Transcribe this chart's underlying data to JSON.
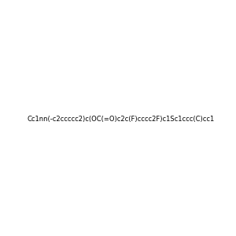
{
  "smiles": "Cc1nn(-c2ccccc2)c(OC(=O)c2c(F)cccc2F)c1Sc1ccc(C)cc1",
  "image_size": 300,
  "background_color": "#e8e8e8",
  "atom_colors": {
    "N": "#0000ff",
    "O": "#ff0000",
    "S": "#cccc00",
    "F": "#ff00ff"
  },
  "title": ""
}
